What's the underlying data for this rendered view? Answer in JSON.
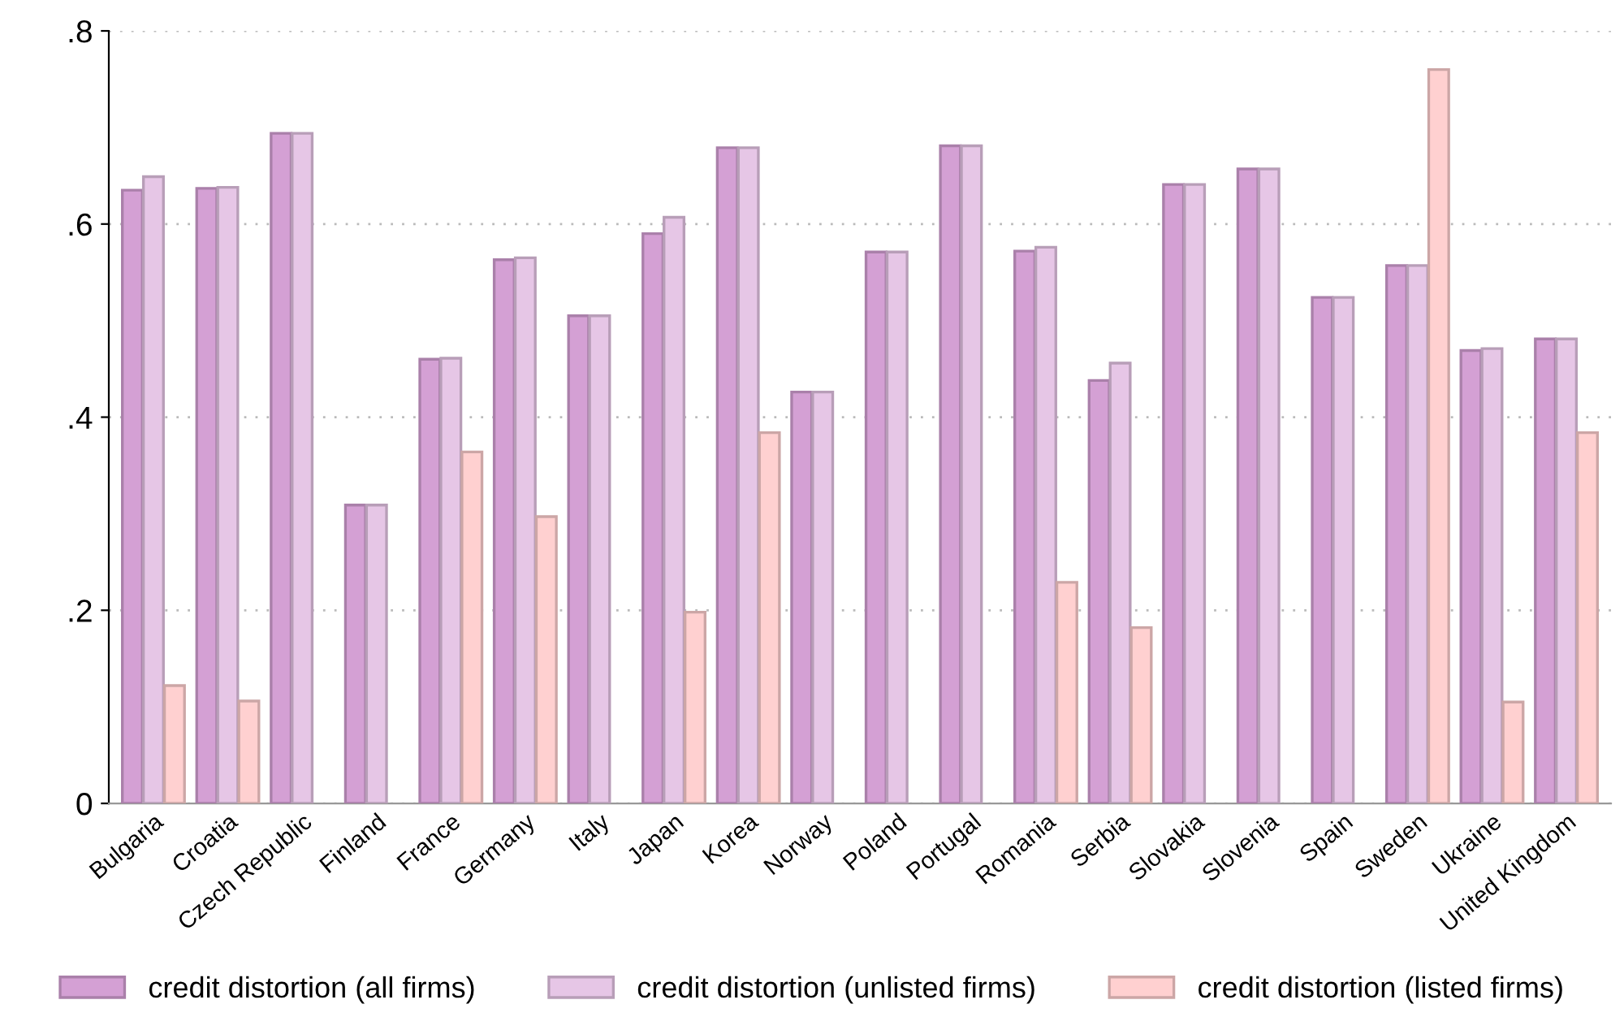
{
  "chart_data": {
    "type": "bar",
    "categories": [
      "Bulgaria",
      "Croatia",
      "Czech Republic",
      "Finland",
      "France",
      "Germany",
      "Italy",
      "Japan",
      "Korea",
      "Norway",
      "Poland",
      "Portugal",
      "Romania",
      "Serbia",
      "Slovakia",
      "Slovenia",
      "Spain",
      "Sweden",
      "Ukraine",
      "United Kingdom"
    ],
    "series": [
      {
        "name": "credit distortion (all firms)",
        "color": "#d4a0d4",
        "values": [
          0.635,
          0.637,
          0.694,
          0.309,
          0.46,
          0.563,
          0.505,
          0.59,
          0.679,
          0.426,
          0.571,
          0.681,
          0.572,
          0.438,
          0.641,
          0.657,
          0.524,
          0.557,
          0.469,
          0.481
        ]
      },
      {
        "name": "credit distortion (unlisted firms)",
        "color": "#e6c6e6",
        "values": [
          0.649,
          0.638,
          0.694,
          0.309,
          0.461,
          0.565,
          0.505,
          0.607,
          0.679,
          0.426,
          0.571,
          0.681,
          0.576,
          0.456,
          0.641,
          0.657,
          0.524,
          0.557,
          0.471,
          0.481
        ]
      },
      {
        "name": "credit distortion (listed firms)",
        "color": "#ffd0d0",
        "values": [
          0.122,
          0.106,
          null,
          null,
          0.364,
          0.297,
          null,
          0.198,
          0.384,
          null,
          null,
          null,
          0.229,
          0.182,
          null,
          null,
          null,
          0.76,
          0.105,
          0.384
        ]
      }
    ],
    "ylim": [
      0,
      0.8
    ],
    "yticks": [
      {
        "value": 0,
        "label": "0"
      },
      {
        "value": 0.2,
        "label": ".2"
      },
      {
        "value": 0.4,
        "label": ".4"
      },
      {
        "value": 0.6,
        "label": ".6"
      },
      {
        "value": 0.8,
        "label": ".8"
      }
    ],
    "grid": "y",
    "legend": "bottom"
  }
}
